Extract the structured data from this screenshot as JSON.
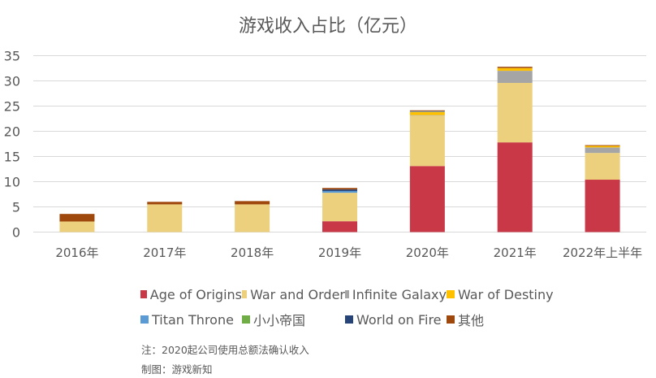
{
  "chart_data": {
    "type": "bar",
    "stacked": true,
    "title": "游戏收入占比（亿元）",
    "xlabel": "",
    "ylabel": "",
    "ylim": [
      0,
      35
    ],
    "yticks": [
      0,
      5,
      10,
      15,
      20,
      25,
      30,
      35
    ],
    "grid": true,
    "legend_position": "bottom",
    "categories": [
      "2016年",
      "2017年",
      "2018年",
      "2019年",
      "2020年",
      "2021年",
      "2022年上半年"
    ],
    "series": [
      {
        "name": "Age of Origins",
        "color": "#C83846",
        "values": [
          0,
          0,
          0,
          2.15,
          13.1,
          17.8,
          10.4
        ]
      },
      {
        "name": "War and Order",
        "color": "#ECD07D",
        "values": [
          2.1,
          5.5,
          5.5,
          5.65,
          10.0,
          11.8,
          5.3
        ]
      },
      {
        "name": "Infinite Galaxy",
        "color": "#A5A5A5",
        "values": [
          0,
          0,
          0,
          0,
          0.1,
          2.4,
          1.1
        ]
      },
      {
        "name": "War of Destiny",
        "color": "#FFC000",
        "values": [
          0,
          0,
          0,
          0,
          0.65,
          0.55,
          0.3
        ]
      },
      {
        "name": "Titan Throne",
        "color": "#5B9BD5",
        "values": [
          0,
          0,
          0,
          0.35,
          0.1,
          0,
          0
        ]
      },
      {
        "name": "小小帝国",
        "color": "#70AD47",
        "values": [
          0,
          0,
          0,
          0,
          0,
          0,
          0
        ]
      },
      {
        "name": "World on Fire",
        "color": "#264478",
        "values": [
          0,
          0,
          0,
          0.3,
          0.05,
          0,
          0
        ]
      },
      {
        "name": "其他",
        "color": "#9E480E",
        "values": [
          1.5,
          0.5,
          0.65,
          0.3,
          0.15,
          0.25,
          0.15
        ]
      }
    ]
  },
  "notes": {
    "note": "注：2020起公司使用总额法确认收入",
    "credit": "制图：游戏新知"
  }
}
